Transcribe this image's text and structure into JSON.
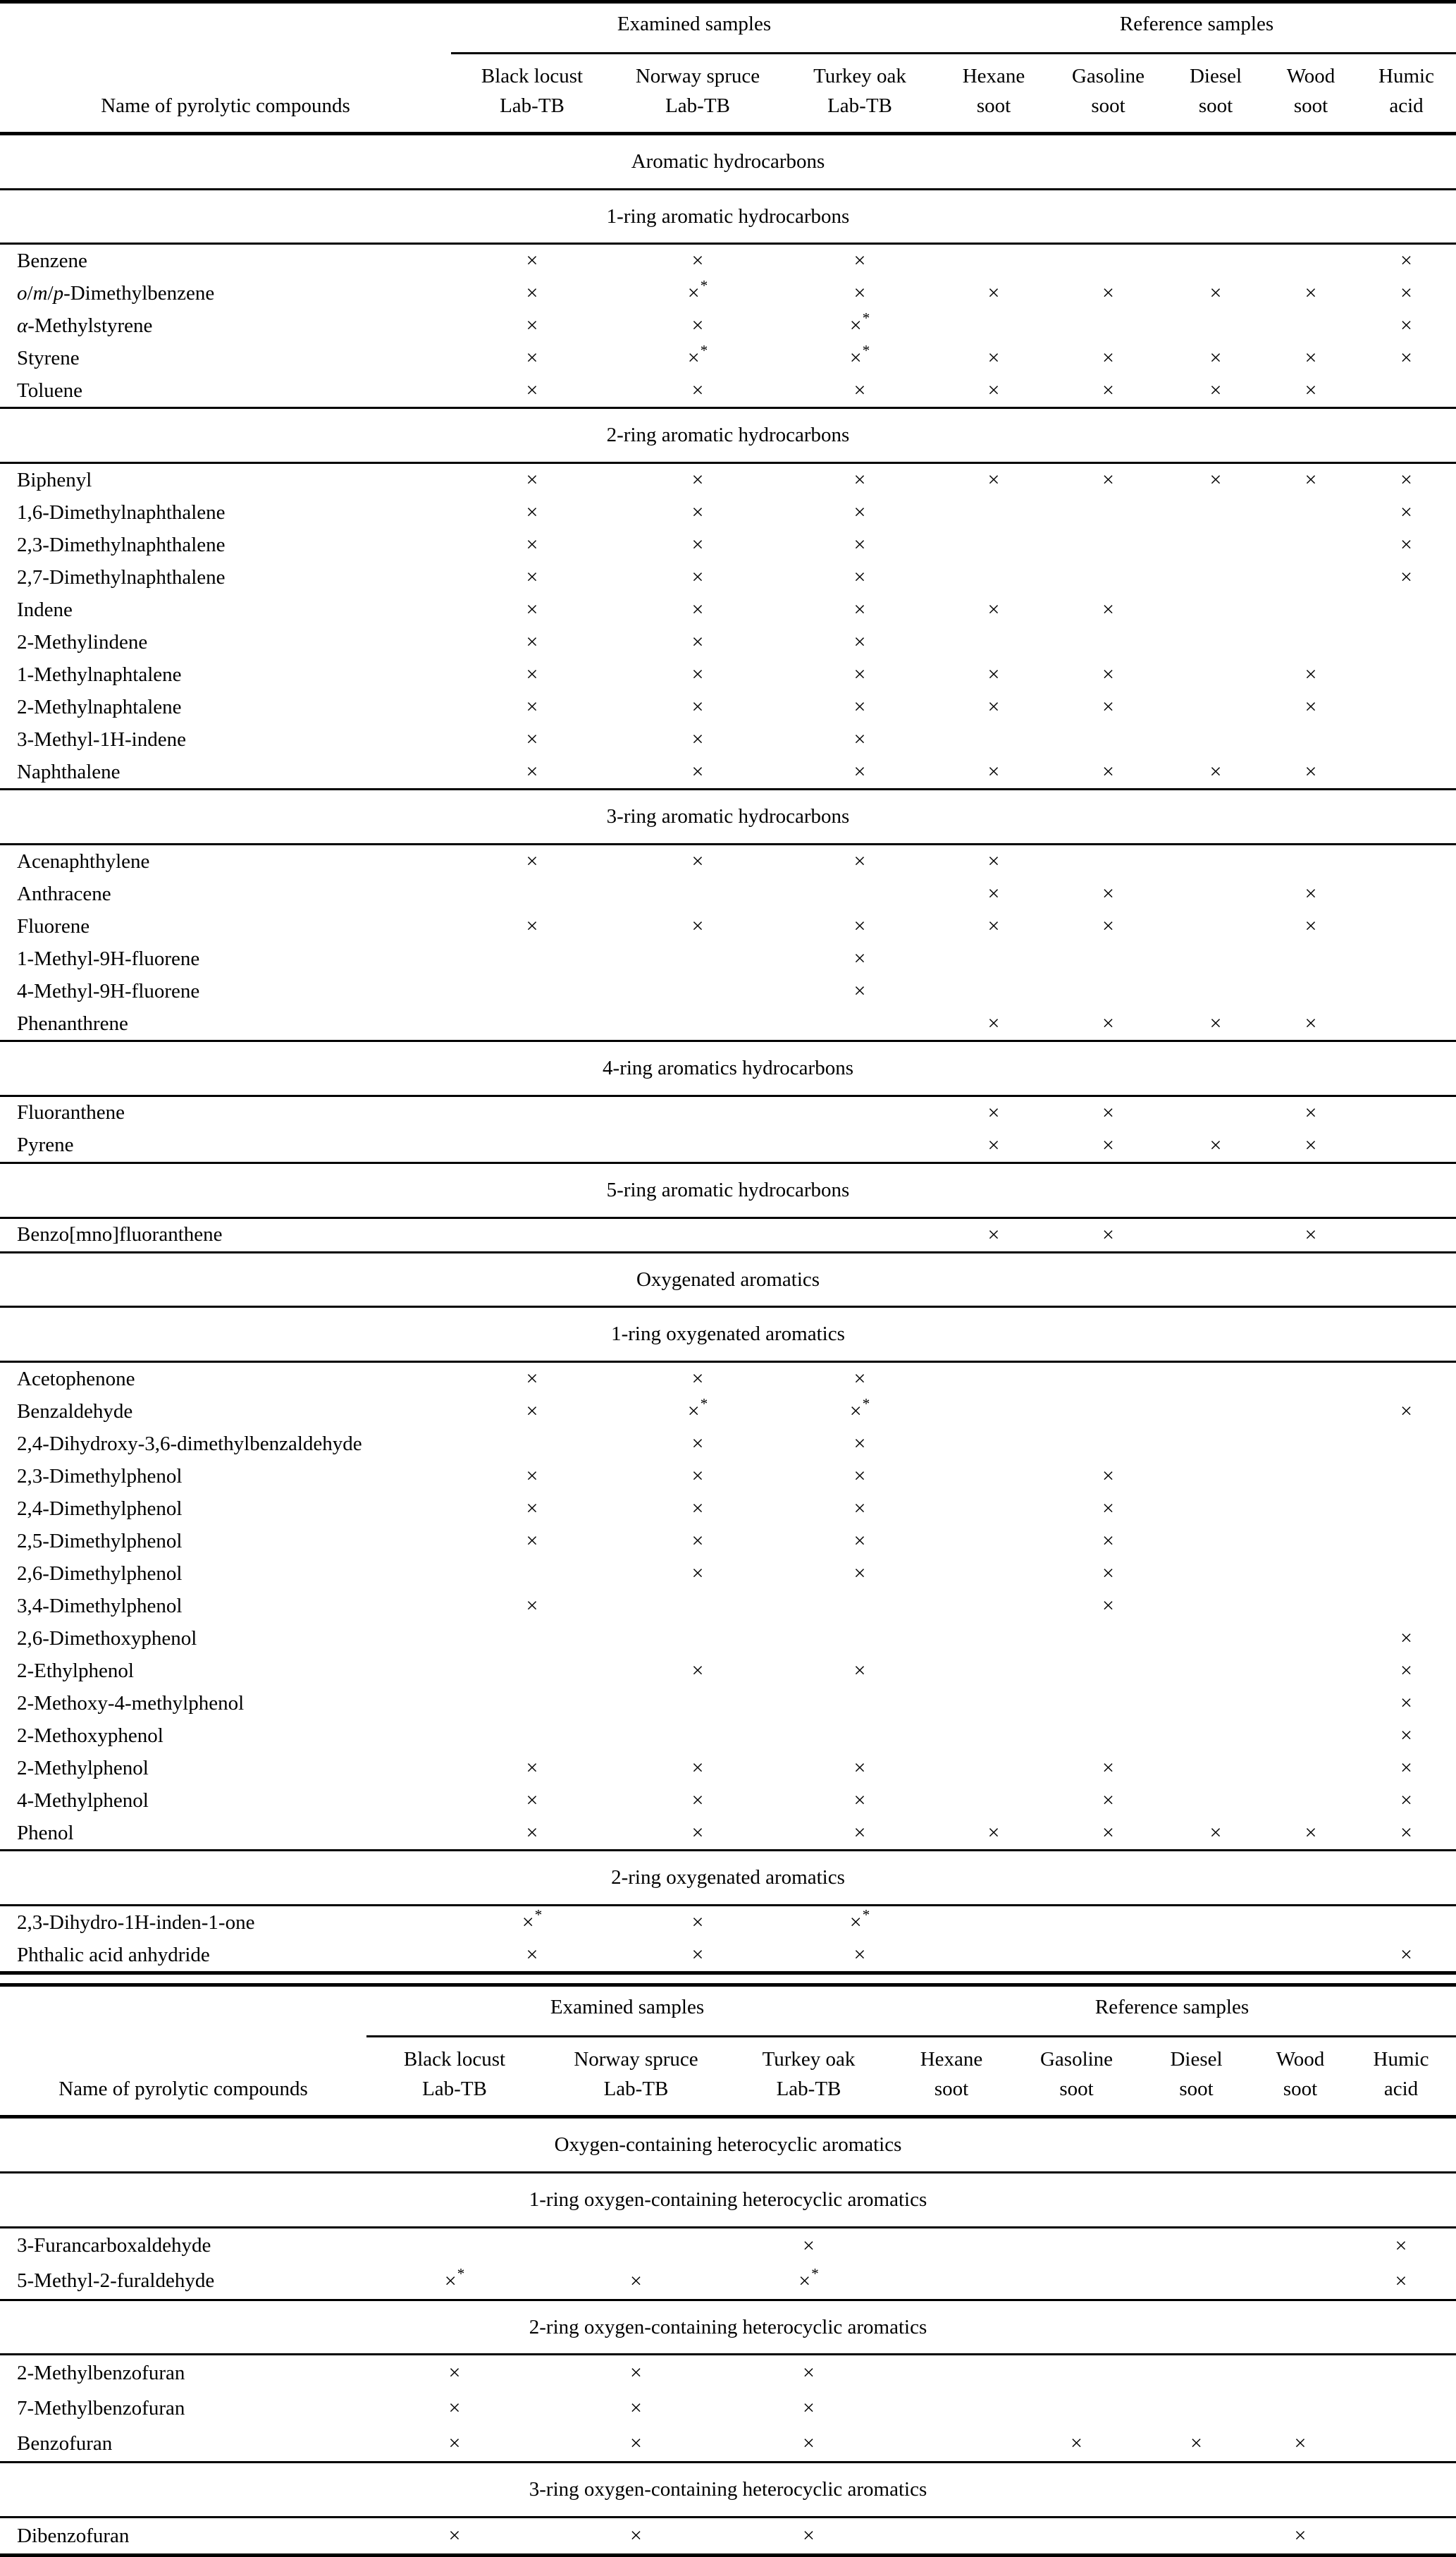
{
  "page": {
    "background": "#ffffff",
    "text_color": "#000000",
    "rule_color": "#000000"
  },
  "legend": {
    "mark": "×",
    "mark_starred": "×*"
  },
  "columns": {
    "name_header": "Name of pyrolytic compounds",
    "group_examined": "Examined samples",
    "group_reference": "Reference samples",
    "samples": [
      {
        "line1": "Black locust",
        "line2": "Lab-TB"
      },
      {
        "line1": "Norway spruce",
        "line2": "Lab-TB"
      },
      {
        "line1": "Turkey oak",
        "line2": "Lab-TB"
      },
      {
        "line1": "Hexane",
        "line2": "soot"
      },
      {
        "line1": "Gasoline",
        "line2": "soot"
      },
      {
        "line1": "Diesel",
        "line2": "soot"
      },
      {
        "line1": "Wood",
        "line2": "soot"
      },
      {
        "line1": "Humic",
        "line2": "acid"
      }
    ]
  },
  "tables": [
    {
      "sections": [
        {
          "title": "Aromatic hydrocarbons",
          "subsections": [
            {
              "title": "1-ring aromatic hydrocarbons",
              "rows": [
                {
                  "name": "Benzene",
                  "marks": [
                    "x",
                    "x",
                    "x",
                    "",
                    "",
                    "",
                    "",
                    "x"
                  ]
                },
                {
                  "name": "o/m/p-Dimethylbenzene",
                  "marks": [
                    "x",
                    "x*",
                    "x",
                    "x",
                    "x",
                    "x",
                    "x",
                    "x"
                  ]
                },
                {
                  "name": "α-Methylstyrene",
                  "marks": [
                    "x",
                    "x",
                    "x*",
                    "",
                    "",
                    "",
                    "",
                    "x"
                  ]
                },
                {
                  "name": "Styrene",
                  "marks": [
                    "x",
                    "x*",
                    "x*",
                    "x",
                    "x",
                    "x",
                    "x",
                    "x"
                  ]
                },
                {
                  "name": "Toluene",
                  "marks": [
                    "x",
                    "x",
                    "x",
                    "x",
                    "x",
                    "x",
                    "x",
                    ""
                  ]
                }
              ]
            },
            {
              "title": "2-ring aromatic hydrocarbons",
              "rows": [
                {
                  "name": "Biphenyl",
                  "marks": [
                    "x",
                    "x",
                    "x",
                    "x",
                    "x",
                    "x",
                    "x",
                    "x"
                  ]
                },
                {
                  "name": "1,6-Dimethylnaphthalene",
                  "marks": [
                    "x",
                    "x",
                    "x",
                    "",
                    "",
                    "",
                    "",
                    "x"
                  ]
                },
                {
                  "name": "2,3-Dimethylnaphthalene",
                  "marks": [
                    "x",
                    "x",
                    "x",
                    "",
                    "",
                    "",
                    "",
                    "x"
                  ]
                },
                {
                  "name": "2,7-Dimethylnaphthalene",
                  "marks": [
                    "x",
                    "x",
                    "x",
                    "",
                    "",
                    "",
                    "",
                    "x"
                  ]
                },
                {
                  "name": "Indene",
                  "marks": [
                    "x",
                    "x",
                    "x",
                    "x",
                    "x",
                    "",
                    "",
                    ""
                  ]
                },
                {
                  "name": "2-Methylindene",
                  "marks": [
                    "x",
                    "x",
                    "x",
                    "",
                    "",
                    "",
                    "",
                    ""
                  ]
                },
                {
                  "name": "1-Methylnaphtalene",
                  "marks": [
                    "x",
                    "x",
                    "x",
                    "x",
                    "x",
                    "",
                    "x",
                    ""
                  ]
                },
                {
                  "name": "2-Methylnaphtalene",
                  "marks": [
                    "x",
                    "x",
                    "x",
                    "x",
                    "x",
                    "",
                    "x",
                    ""
                  ]
                },
                {
                  "name": "3-Methyl-1H-indene",
                  "marks": [
                    "x",
                    "x",
                    "x",
                    "",
                    "",
                    "",
                    "",
                    ""
                  ]
                },
                {
                  "name": "Naphthalene",
                  "marks": [
                    "x",
                    "x",
                    "x",
                    "x",
                    "x",
                    "x",
                    "x",
                    ""
                  ]
                }
              ]
            },
            {
              "title": "3-ring aromatic hydrocarbons",
              "rows": [
                {
                  "name": "Acenaphthylene",
                  "marks": [
                    "x",
                    "x",
                    "x",
                    "x",
                    "",
                    "",
                    "",
                    ""
                  ]
                },
                {
                  "name": "Anthracene",
                  "marks": [
                    "",
                    "",
                    "",
                    "x",
                    "x",
                    "",
                    "x",
                    ""
                  ]
                },
                {
                  "name": "Fluorene",
                  "marks": [
                    "x",
                    "x",
                    "x",
                    "x",
                    "x",
                    "",
                    "x",
                    ""
                  ]
                },
                {
                  "name": "1-Methyl-9H-fluorene",
                  "marks": [
                    "",
                    "",
                    "x",
                    "",
                    "",
                    "",
                    "",
                    ""
                  ]
                },
                {
                  "name": "4-Methyl-9H-fluorene",
                  "marks": [
                    "",
                    "",
                    "x",
                    "",
                    "",
                    "",
                    "",
                    ""
                  ]
                },
                {
                  "name": "Phenanthrene",
                  "marks": [
                    "",
                    "",
                    "",
                    "x",
                    "x",
                    "x",
                    "x",
                    ""
                  ]
                }
              ]
            },
            {
              "title": "4-ring aromatics hydrocarbons",
              "rows": [
                {
                  "name": "Fluoranthene",
                  "marks": [
                    "",
                    "",
                    "",
                    "x",
                    "x",
                    "",
                    "x",
                    ""
                  ]
                },
                {
                  "name": "Pyrene",
                  "marks": [
                    "",
                    "",
                    "",
                    "x",
                    "x",
                    "x",
                    "x",
                    ""
                  ]
                }
              ]
            },
            {
              "title": "5-ring aromatic hydrocarbons",
              "rows": [
                {
                  "name": "Benzo[mno]fluoranthene",
                  "marks": [
                    "",
                    "",
                    "",
                    "x",
                    "x",
                    "",
                    "x",
                    ""
                  ]
                }
              ]
            }
          ]
        },
        {
          "title": "Oxygenated aromatics",
          "subsections": [
            {
              "title": "1-ring oxygenated aromatics",
              "rows": [
                {
                  "name": "Acetophenone",
                  "marks": [
                    "x",
                    "x",
                    "x",
                    "",
                    "",
                    "",
                    "",
                    ""
                  ]
                },
                {
                  "name": "Benzaldehyde",
                  "marks": [
                    "x",
                    "x*",
                    "x*",
                    "",
                    "",
                    "",
                    "",
                    "x"
                  ]
                },
                {
                  "name": "2,4-Dihydroxy-3,6-dimethylbenzaldehyde",
                  "marks": [
                    "",
                    "x",
                    "x",
                    "",
                    "",
                    "",
                    "",
                    ""
                  ]
                },
                {
                  "name": "2,3-Dimethylphenol",
                  "marks": [
                    "x",
                    "x",
                    "x",
                    "",
                    "x",
                    "",
                    "",
                    ""
                  ]
                },
                {
                  "name": "2,4-Dimethylphenol",
                  "marks": [
                    "x",
                    "x",
                    "x",
                    "",
                    "x",
                    "",
                    "",
                    ""
                  ]
                },
                {
                  "name": "2,5-Dimethylphenol",
                  "marks": [
                    "x",
                    "x",
                    "x",
                    "",
                    "x",
                    "",
                    "",
                    ""
                  ]
                },
                {
                  "name": "2,6-Dimethylphenol",
                  "marks": [
                    "",
                    "x",
                    "x",
                    "",
                    "x",
                    "",
                    "",
                    ""
                  ]
                },
                {
                  "name": "3,4-Dimethylphenol",
                  "marks": [
                    "x",
                    "",
                    "",
                    "",
                    "x",
                    "",
                    "",
                    ""
                  ]
                },
                {
                  "name": "2,6-Dimethoxyphenol",
                  "marks": [
                    "",
                    "",
                    "",
                    "",
                    "",
                    "",
                    "",
                    "x"
                  ]
                },
                {
                  "name": "2-Ethylphenol",
                  "marks": [
                    "",
                    "x",
                    "x",
                    "",
                    "",
                    "",
                    "",
                    "x"
                  ]
                },
                {
                  "name": "2-Methoxy-4-methylphenol",
                  "marks": [
                    "",
                    "",
                    "",
                    "",
                    "",
                    "",
                    "",
                    "x"
                  ]
                },
                {
                  "name": "2-Methoxyphenol",
                  "marks": [
                    "",
                    "",
                    "",
                    "",
                    "",
                    "",
                    "",
                    "x"
                  ]
                },
                {
                  "name": "2-Methylphenol",
                  "marks": [
                    "x",
                    "x",
                    "x",
                    "",
                    "x",
                    "",
                    "",
                    "x"
                  ]
                },
                {
                  "name": "4-Methylphenol",
                  "marks": [
                    "x",
                    "x",
                    "x",
                    "",
                    "x",
                    "",
                    "",
                    "x"
                  ]
                },
                {
                  "name": "Phenol",
                  "marks": [
                    "x",
                    "x",
                    "x",
                    "x",
                    "x",
                    "x",
                    "x",
                    "x"
                  ]
                }
              ]
            },
            {
              "title": "2-ring oxygenated aromatics",
              "rows": [
                {
                  "name": "2,3-Dihydro-1H-inden-1-one",
                  "marks": [
                    "x*",
                    "x",
                    "x*",
                    "",
                    "",
                    "",
                    "",
                    ""
                  ]
                },
                {
                  "name": "Phthalic acid anhydride",
                  "marks": [
                    "x",
                    "x",
                    "x",
                    "",
                    "",
                    "",
                    "",
                    "x"
                  ]
                }
              ]
            }
          ]
        }
      ]
    },
    {
      "sections": [
        {
          "title": "Oxygen-containing heterocyclic aromatics",
          "subsections": [
            {
              "title": "1-ring oxygen-containing heterocyclic aromatics",
              "rows": [
                {
                  "name": "3-Furancarboxaldehyde",
                  "marks": [
                    "",
                    "",
                    "x",
                    "",
                    "",
                    "",
                    "",
                    "x"
                  ]
                },
                {
                  "name": "5-Methyl-2-furaldehyde",
                  "marks": [
                    "x*",
                    "x",
                    "x*",
                    "",
                    "",
                    "",
                    "",
                    "x"
                  ]
                }
              ]
            },
            {
              "title": "2-ring oxygen-containing heterocyclic aromatics",
              "rows": [
                {
                  "name": "2-Methylbenzofuran",
                  "marks": [
                    "x",
                    "x",
                    "x",
                    "",
                    "",
                    "",
                    "",
                    ""
                  ]
                },
                {
                  "name": "7-Methylbenzofuran",
                  "marks": [
                    "x",
                    "x",
                    "x",
                    "",
                    "",
                    "",
                    "",
                    ""
                  ]
                },
                {
                  "name": "Benzofuran",
                  "marks": [
                    "x",
                    "x",
                    "x",
                    "",
                    "x",
                    "x",
                    "x",
                    ""
                  ]
                }
              ]
            },
            {
              "title": "3-ring oxygen-containing heterocyclic aromatics",
              "rows": [
                {
                  "name": "Dibenzofuran",
                  "marks": [
                    "x",
                    "x",
                    "x",
                    "",
                    "",
                    "",
                    "x",
                    ""
                  ]
                }
              ]
            }
          ]
        }
      ]
    }
  ]
}
